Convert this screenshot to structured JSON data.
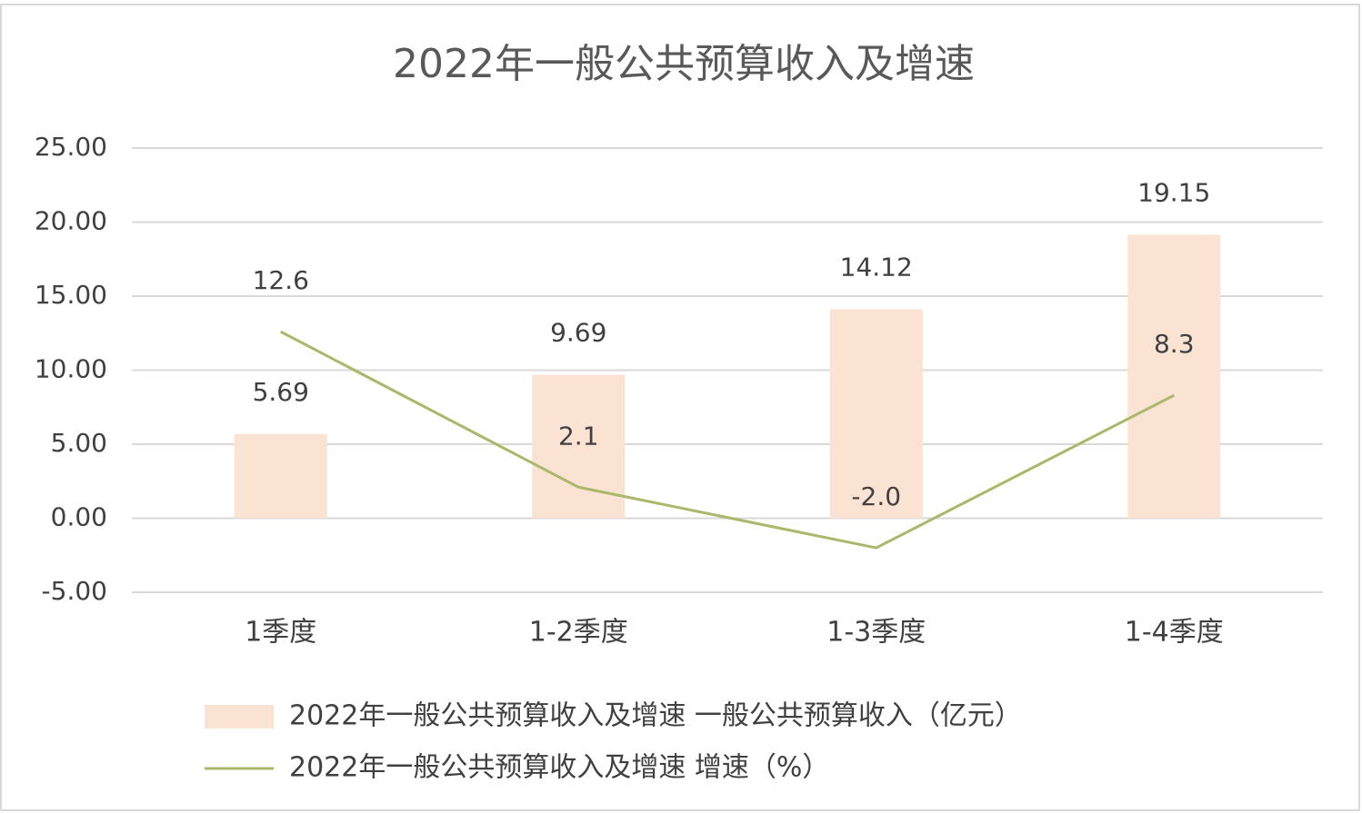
{
  "chart_data": {
    "type": "combo",
    "title": "2022年一般公共预算收入及增速",
    "categories": [
      "1季度",
      "1-2季度",
      "1-3季度",
      "1-4季度"
    ],
    "series": [
      {
        "name": "2022年一般公共预算收入及增速 一般公共预算收入（亿元）",
        "type": "bar",
        "color": "#fbe3d4",
        "values": [
          5.69,
          9.69,
          14.12,
          19.15
        ]
      },
      {
        "name": "2022年一般公共预算收入及增速 增速（%）",
        "type": "line",
        "color": "#a9b86a",
        "values": [
          12.6,
          2.1,
          -2.0,
          8.3
        ],
        "value_labels": [
          "12.6",
          "2.1",
          "-2.0",
          "8.3"
        ]
      }
    ],
    "ylim": [
      -5,
      25
    ],
    "yticks": [
      {
        "value": -5,
        "label": "-5.00"
      },
      {
        "value": 0,
        "label": "0.00"
      },
      {
        "value": 5,
        "label": "5.00"
      },
      {
        "value": 10,
        "label": "10.00"
      },
      {
        "value": 15,
        "label": "15.00"
      },
      {
        "value": 20,
        "label": "20.00"
      },
      {
        "value": 25,
        "label": "25.00"
      }
    ],
    "grid": true
  }
}
